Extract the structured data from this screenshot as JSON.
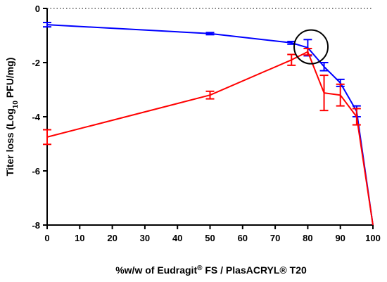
{
  "chart_data": {
    "type": "line",
    "title": "",
    "xlabel": {
      "prefix": "%w/w of Eudragit",
      "sup": "®",
      "suffix": " FS / PlasACRYL® T20"
    },
    "ylabel": {
      "prefix": "Titer loss (Log",
      "sub": "10",
      "suffix": " PFU/mg)"
    },
    "xlim": [
      0,
      100
    ],
    "ylim": [
      -8,
      0
    ],
    "xticks": [
      "0",
      "10",
      "20",
      "30",
      "40",
      "50",
      "60",
      "70",
      "80",
      "90",
      "100"
    ],
    "yticks": [
      "0",
      "-2",
      "-4",
      "-6",
      "-8"
    ],
    "reference_line": {
      "y": 0,
      "style": "dotted"
    },
    "grid": false,
    "legend": "none",
    "series": [
      {
        "color": "#0000ff",
        "points": [
          {
            "x": 0,
            "y": -0.6,
            "err": 0.08
          },
          {
            "x": 50,
            "y": -0.93,
            "err": 0.04
          },
          {
            "x": 75,
            "y": -1.27,
            "err": 0.05
          },
          {
            "x": 80,
            "y": -1.45,
            "err": 0.3
          },
          {
            "x": 85,
            "y": -2.15,
            "err": 0.15
          },
          {
            "x": 90,
            "y": -2.75,
            "err": 0.13
          },
          {
            "x": 95,
            "y": -3.8,
            "err": 0.2
          },
          {
            "x": 100,
            "y": -8.0,
            "err": 0
          }
        ]
      },
      {
        "color": "#ff0000",
        "points": [
          {
            "x": 0,
            "y": -4.75,
            "err": 0.27
          },
          {
            "x": 50,
            "y": -3.2,
            "err": 0.14
          },
          {
            "x": 75,
            "y": -1.9,
            "err": 0.2
          },
          {
            "x": 80,
            "y": -1.6,
            "err": 0.12
          },
          {
            "x": 85,
            "y": -3.12,
            "err": 0.65
          },
          {
            "x": 90,
            "y": -3.2,
            "err": 0.4
          },
          {
            "x": 95,
            "y": -4.0,
            "err": 0.3
          },
          {
            "x": 100,
            "y": -8.0,
            "err": 0
          }
        ]
      }
    ],
    "annotations": [
      {
        "type": "circle",
        "x": 81,
        "y": -1.42
      }
    ]
  }
}
